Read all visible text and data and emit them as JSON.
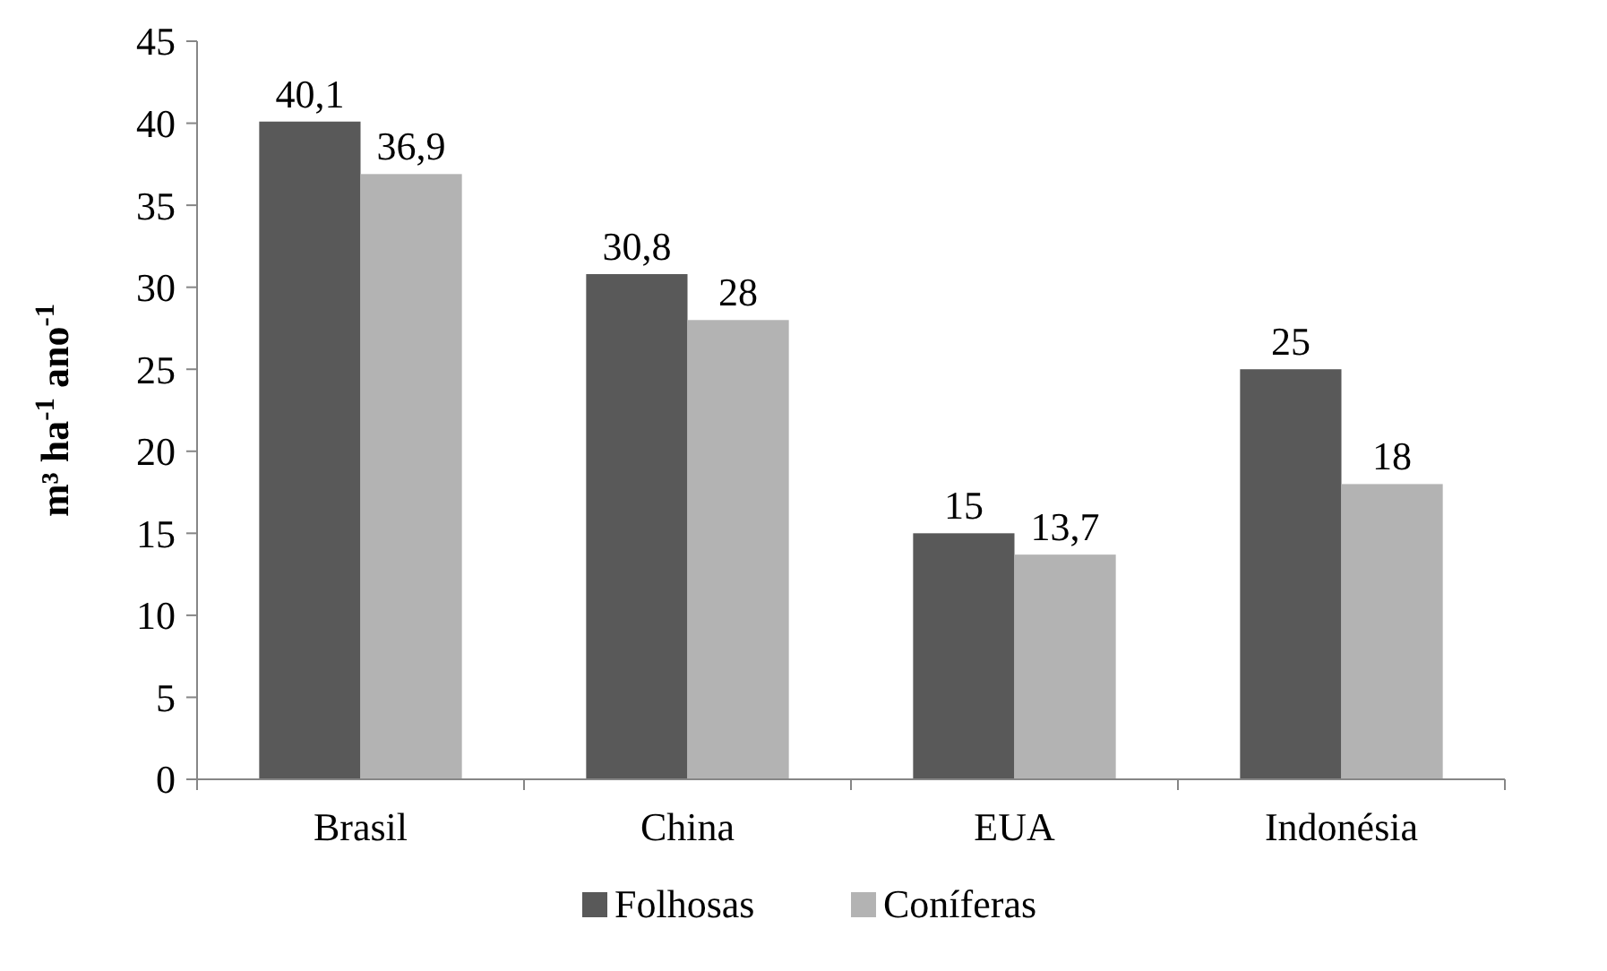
{
  "chart_data": {
    "type": "bar",
    "ylabel": "m³ ha$^{-1}$ ano$^{-1}$",
    "categories": [
      "Brasil",
      "China",
      "EUA",
      "Indonésia"
    ],
    "series": [
      {
        "name": "Folhosas",
        "color": "#595959",
        "values": [
          40.1,
          30.8,
          15,
          25
        ],
        "value_labels": [
          "40,1",
          "30,8",
          "15",
          "25"
        ]
      },
      {
        "name": "Coníferas",
        "color": "#b3b3b3",
        "values": [
          36.9,
          28,
          13.7,
          18
        ],
        "value_labels": [
          "36,9",
          "28",
          "13,7",
          "18"
        ]
      }
    ],
    "ylim": [
      0,
      45
    ],
    "yticks": [
      0,
      5,
      10,
      15,
      20,
      25,
      30,
      35,
      40,
      45
    ],
    "grid": false,
    "legend": "bottom"
  }
}
